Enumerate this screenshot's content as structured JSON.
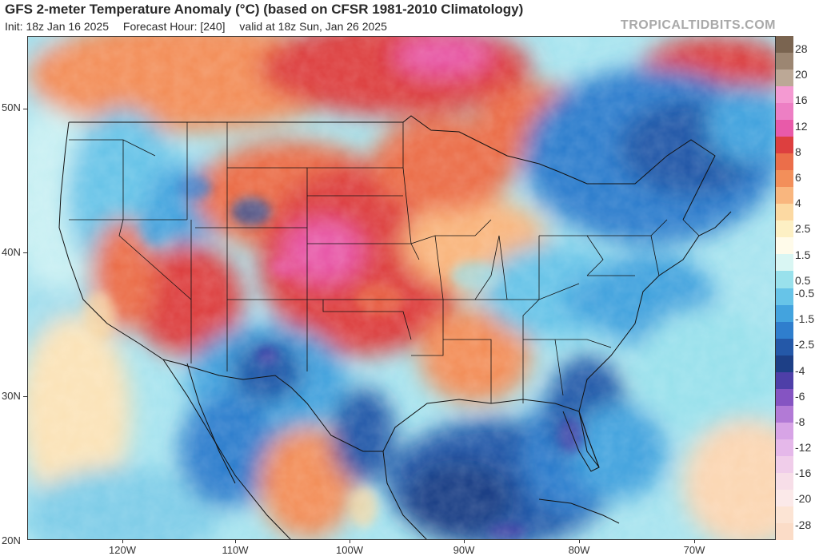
{
  "header": {
    "title": "GFS 2-meter Temperature Anomaly (°C) (based on CFSR 1981-2010 Climatology)",
    "init": "Init: 18z Jan 16 2025",
    "forecast_hour": "Forecast Hour: [240]",
    "valid": "valid at 18z Sun, Jan 26 2025",
    "brand": "TROPICALTIDBITS.COM"
  },
  "axes": {
    "lat_labels": [
      "50N",
      "40N",
      "30N",
      "20N"
    ],
    "lon_labels": [
      "120W",
      "110W",
      "100W",
      "90W",
      "80W",
      "70W"
    ]
  },
  "legend": {
    "labels": [
      "28",
      "20",
      "16",
      "12",
      "8",
      "6",
      "4",
      "2.5",
      "1.5",
      "0.5",
      "-0.5",
      "-1.5",
      "-2.5",
      "-4",
      "-6",
      "-8",
      "-12",
      "-16",
      "-20",
      "-28"
    ],
    "colors": [
      "#7a6450",
      "#9c8672",
      "#bca896",
      "#f49ad2",
      "#ed7fc4",
      "#e85aa9",
      "#dd3f3f",
      "#eb6e4a",
      "#f38f5a",
      "#f9b67e",
      "#fcd9a2",
      "#fdf0c4",
      "#fffbea",
      "#d9f6f3",
      "#99e1ec",
      "#67c4e8",
      "#43a3de",
      "#2f7ecd",
      "#2458a8",
      "#1d3f86",
      "#4e3fa8",
      "#8554c2",
      "#b27ad6",
      "#d7a4e6",
      "#e5b8ea",
      "#f0cdea",
      "#f7dee8",
      "#fbe9e9",
      "#fce4d4",
      "#fbdcc7"
    ]
  },
  "map_regions": {
    "states": [
      "Washington",
      "Oregon",
      "California",
      "Nevada",
      "Idaho",
      "Montana",
      "Wyoming",
      "Utah",
      "Arizona",
      "Colorado",
      "New Mexico",
      "North Dakota",
      "South Dakota",
      "Nebraska",
      "Kansas",
      "Oklahoma",
      "Texas",
      "Minnesota",
      "Iowa",
      "Missouri",
      "Arkansas",
      "Louisiana",
      "Wisconsin",
      "Illinois",
      "Michigan",
      "Indiana",
      "Ohio",
      "Kentucky",
      "Tennessee",
      "Mississippi",
      "Alabama",
      "Georgia",
      "Florida",
      "South Carolina",
      "North Carolina",
      "Virginia",
      "West Virginia",
      "Pennsylvania",
      "New York",
      "Maine"
    ]
  }
}
